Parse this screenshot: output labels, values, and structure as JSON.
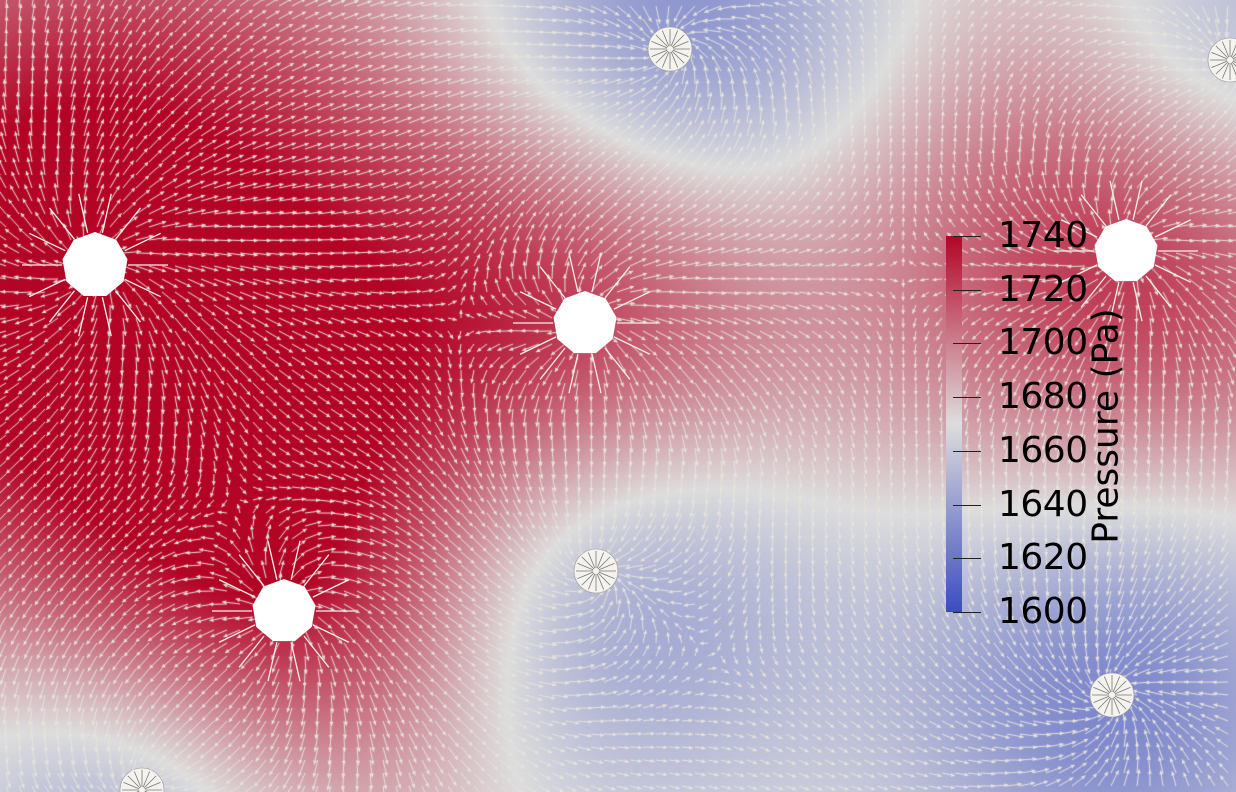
{
  "visualization": {
    "field": "Pressure",
    "vector_glyphs": "arrows",
    "colormap": "cool-to-warm",
    "colors": {
      "low": "#3b4cc0",
      "mid": "#dddddd",
      "high": "#b40426",
      "glyph": "#e6e4dc",
      "hole": "#ffffff"
    }
  },
  "legend": {
    "title": "Pressure (Pa)",
    "min": 1600,
    "max": 1740,
    "ticks": [
      "1740",
      "1720",
      "1700",
      "1680",
      "1660",
      "1640",
      "1620",
      "1600"
    ]
  },
  "wells": [
    {
      "kind": "injector",
      "shape": "open-hole"
    },
    {
      "kind": "injector",
      "shape": "open-hole"
    },
    {
      "kind": "injector",
      "shape": "open-hole"
    },
    {
      "kind": "injector",
      "shape": "open-hole"
    },
    {
      "kind": "producer",
      "shape": "converging-arrows"
    },
    {
      "kind": "producer",
      "shape": "converging-arrows"
    },
    {
      "kind": "producer",
      "shape": "converging-arrows"
    },
    {
      "kind": "producer",
      "shape": "converging-arrows"
    },
    {
      "kind": "producer",
      "shape": "converging-arrows"
    }
  ]
}
